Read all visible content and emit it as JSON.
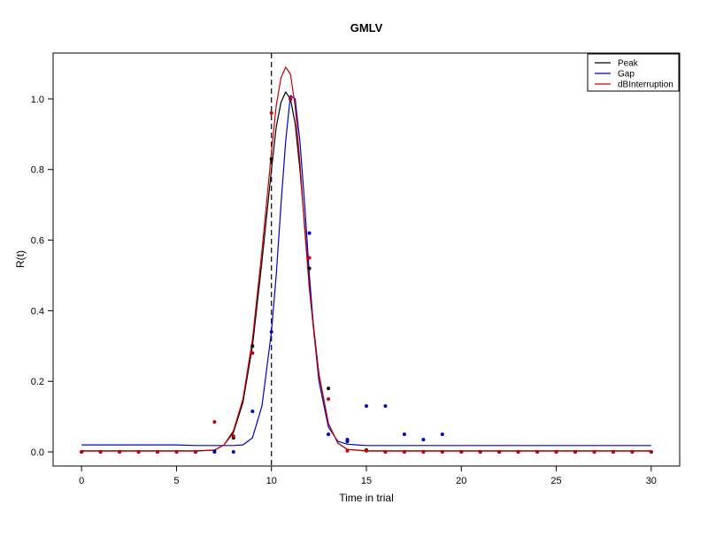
{
  "chart_data": {
    "type": "scatter",
    "title": "GMLV",
    "xlabel": "Time in trial",
    "ylabel": "R(t)",
    "xlim": [
      -1.5,
      31.5
    ],
    "ylim": [
      -0.04,
      1.13
    ],
    "xticks": [
      0,
      5,
      10,
      15,
      20,
      25,
      30
    ],
    "yticks": [
      0.0,
      0.2,
      0.4,
      0.6,
      0.8,
      1.0
    ],
    "xtick_labels": [
      "0",
      "5",
      "10",
      "15",
      "20",
      "25",
      "30"
    ],
    "ytick_labels": [
      "0.0",
      "0.2",
      "0.4",
      "0.6",
      "0.8",
      "1.0"
    ],
    "vline": {
      "x": 10,
      "style": "dashed",
      "color": "#000000"
    },
    "legend": {
      "position": "top-right"
    },
    "series": [
      {
        "name": "Peak",
        "kind": "line",
        "color": "#000000",
        "x": [
          0,
          1,
          2,
          3,
          4,
          5,
          6,
          7,
          7.5,
          8,
          8.5,
          9,
          9.5,
          10,
          10.25,
          10.5,
          10.75,
          11,
          11.25,
          11.5,
          11.75,
          12,
          12.25,
          12.5,
          13,
          13.5,
          14,
          15,
          16,
          17,
          18,
          19,
          20,
          21,
          22,
          23,
          24,
          25,
          26,
          27,
          28,
          29,
          30
        ],
        "y": [
          0.003,
          0.003,
          0.003,
          0.003,
          0.003,
          0.003,
          0.003,
          0.005,
          0.02,
          0.055,
          0.14,
          0.3,
          0.54,
          0.8,
          0.92,
          0.99,
          1.02,
          1.0,
          0.93,
          0.8,
          0.64,
          0.47,
          0.34,
          0.22,
          0.08,
          0.025,
          0.007,
          0.003,
          0.003,
          0.003,
          0.003,
          0.003,
          0.003,
          0.003,
          0.003,
          0.003,
          0.003,
          0.003,
          0.003,
          0.003,
          0.003,
          0.003,
          0.003
        ]
      },
      {
        "name": "Gap",
        "kind": "line",
        "color": "#0000cc",
        "x": [
          0,
          1,
          2,
          3,
          4,
          5,
          6,
          7,
          8,
          8.5,
          9,
          9.5,
          10,
          10.25,
          10.5,
          10.75,
          11,
          11.25,
          11.5,
          11.75,
          12,
          12.25,
          12.5,
          13,
          13.5,
          14,
          14.5,
          15,
          16,
          17,
          18,
          19,
          20,
          21,
          22,
          23,
          24,
          25,
          26,
          27,
          28,
          29,
          30
        ],
        "y": [
          0.02,
          0.02,
          0.02,
          0.02,
          0.02,
          0.02,
          0.018,
          0.018,
          0.018,
          0.02,
          0.04,
          0.13,
          0.34,
          0.5,
          0.7,
          0.88,
          1.01,
          1.0,
          0.88,
          0.7,
          0.5,
          0.33,
          0.2,
          0.07,
          0.03,
          0.022,
          0.02,
          0.018,
          0.018,
          0.018,
          0.018,
          0.018,
          0.018,
          0.018,
          0.018,
          0.018,
          0.018,
          0.018,
          0.018,
          0.018,
          0.018,
          0.018,
          0.018
        ]
      },
      {
        "name": "dBInterruption",
        "kind": "line",
        "color": "#cc0000",
        "x": [
          0,
          1,
          2,
          3,
          4,
          5,
          6,
          7,
          7.5,
          8,
          8.5,
          9,
          9.5,
          10,
          10.25,
          10.5,
          10.75,
          11,
          11.25,
          11.5,
          11.75,
          12,
          12.25,
          12.5,
          13,
          13.5,
          14,
          15,
          16,
          17,
          18,
          19,
          20,
          21,
          22,
          23,
          24,
          25,
          26,
          27,
          28,
          29,
          30
        ],
        "y": [
          0.002,
          0.002,
          0.002,
          0.002,
          0.002,
          0.002,
          0.002,
          0.005,
          0.02,
          0.06,
          0.15,
          0.32,
          0.57,
          0.85,
          0.98,
          1.06,
          1.09,
          1.07,
          0.98,
          0.82,
          0.63,
          0.46,
          0.33,
          0.22,
          0.08,
          0.025,
          0.007,
          0.002,
          0.002,
          0.002,
          0.002,
          0.002,
          0.002,
          0.002,
          0.002,
          0.002,
          0.002,
          0.002,
          0.002,
          0.002,
          0.002,
          0.002,
          0.002
        ]
      },
      {
        "name": "Peak data",
        "kind": "points",
        "color": "#000000",
        "x": [
          0,
          1,
          2,
          3,
          4,
          5,
          6,
          7,
          8,
          9,
          10,
          11,
          12,
          13,
          14,
          15,
          16,
          17,
          18,
          19,
          20,
          21,
          22,
          23,
          24,
          25,
          26,
          27,
          28,
          29,
          30
        ],
        "y": [
          0,
          0,
          0,
          0,
          0,
          0,
          0,
          0.002,
          0.04,
          0.3,
          0.83,
          1.0,
          0.52,
          0.18,
          0.03,
          0.005,
          0,
          0,
          0,
          0,
          0,
          0,
          0,
          0,
          0,
          0,
          0,
          0,
          0,
          0,
          0
        ]
      },
      {
        "name": "Gap data",
        "kind": "points",
        "color": "#0000cc",
        "x": [
          0,
          1,
          2,
          3,
          4,
          5,
          6,
          7,
          8,
          9,
          10,
          11,
          12,
          13,
          14,
          15,
          16,
          17,
          18,
          19,
          20,
          21,
          22,
          23,
          24,
          25,
          26,
          27,
          28,
          29,
          30
        ],
        "y": [
          0,
          0,
          0,
          0,
          0,
          0,
          0,
          0,
          0,
          0.115,
          0.34,
          1.0,
          0.62,
          0.05,
          0.035,
          0.13,
          0.13,
          0.05,
          0.035,
          0.05,
          0,
          0,
          0,
          0,
          0,
          0,
          0,
          0,
          0,
          0,
          0
        ]
      },
      {
        "name": "dBInterruption data",
        "kind": "points",
        "color": "#cc0000",
        "x": [
          0,
          1,
          2,
          3,
          4,
          5,
          6,
          7,
          8,
          9,
          10,
          11,
          12,
          13,
          14,
          15,
          16,
          17,
          18,
          19,
          20,
          21,
          22,
          23,
          24,
          25,
          26,
          27,
          28,
          29,
          30
        ],
        "y": [
          0,
          0,
          0,
          0,
          0,
          0,
          0,
          0.085,
          0.045,
          0.28,
          0.96,
          1.0,
          0.55,
          0.15,
          0.003,
          0.003,
          0,
          0,
          0,
          0,
          0,
          0,
          0,
          0,
          0,
          0,
          0,
          0,
          0,
          0,
          0
        ]
      }
    ]
  }
}
